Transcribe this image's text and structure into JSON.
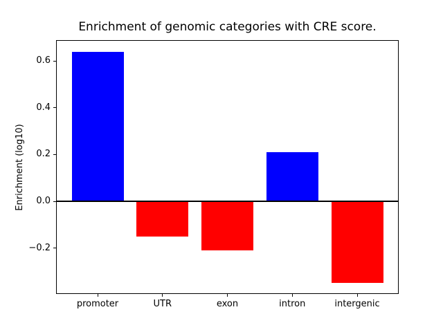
{
  "figure": {
    "background_color": "#ffffff",
    "spine_color": "#000000",
    "text_color": "#000000"
  },
  "chart_data": {
    "type": "bar",
    "title": "Enrichment of genomic categories with CRE score.",
    "xlabel": "",
    "ylabel": "Enrichment (log10)",
    "categories": [
      "promoter",
      "UTR",
      "exon",
      "intron",
      "intergenic"
    ],
    "values": [
      0.64,
      -0.15,
      -0.21,
      0.21,
      -0.35
    ],
    "bar_colors": [
      "#0000ff",
      "#ff0000",
      "#ff0000",
      "#0000ff",
      "#ff0000"
    ],
    "positive_color": "#0000ff",
    "negative_color": "#ff0000",
    "yticks": [
      0.6,
      0.4,
      0.2,
      0.0,
      -0.2
    ],
    "ytick_labels": [
      "0.6",
      "0.4",
      "0.2",
      "0.0",
      "−0.2"
    ],
    "ylim": [
      -0.396,
      0.689
    ],
    "xlim": [
      -0.64,
      4.64
    ],
    "bar_width": 0.8,
    "zero_line": true,
    "grid": false,
    "legend": null
  }
}
